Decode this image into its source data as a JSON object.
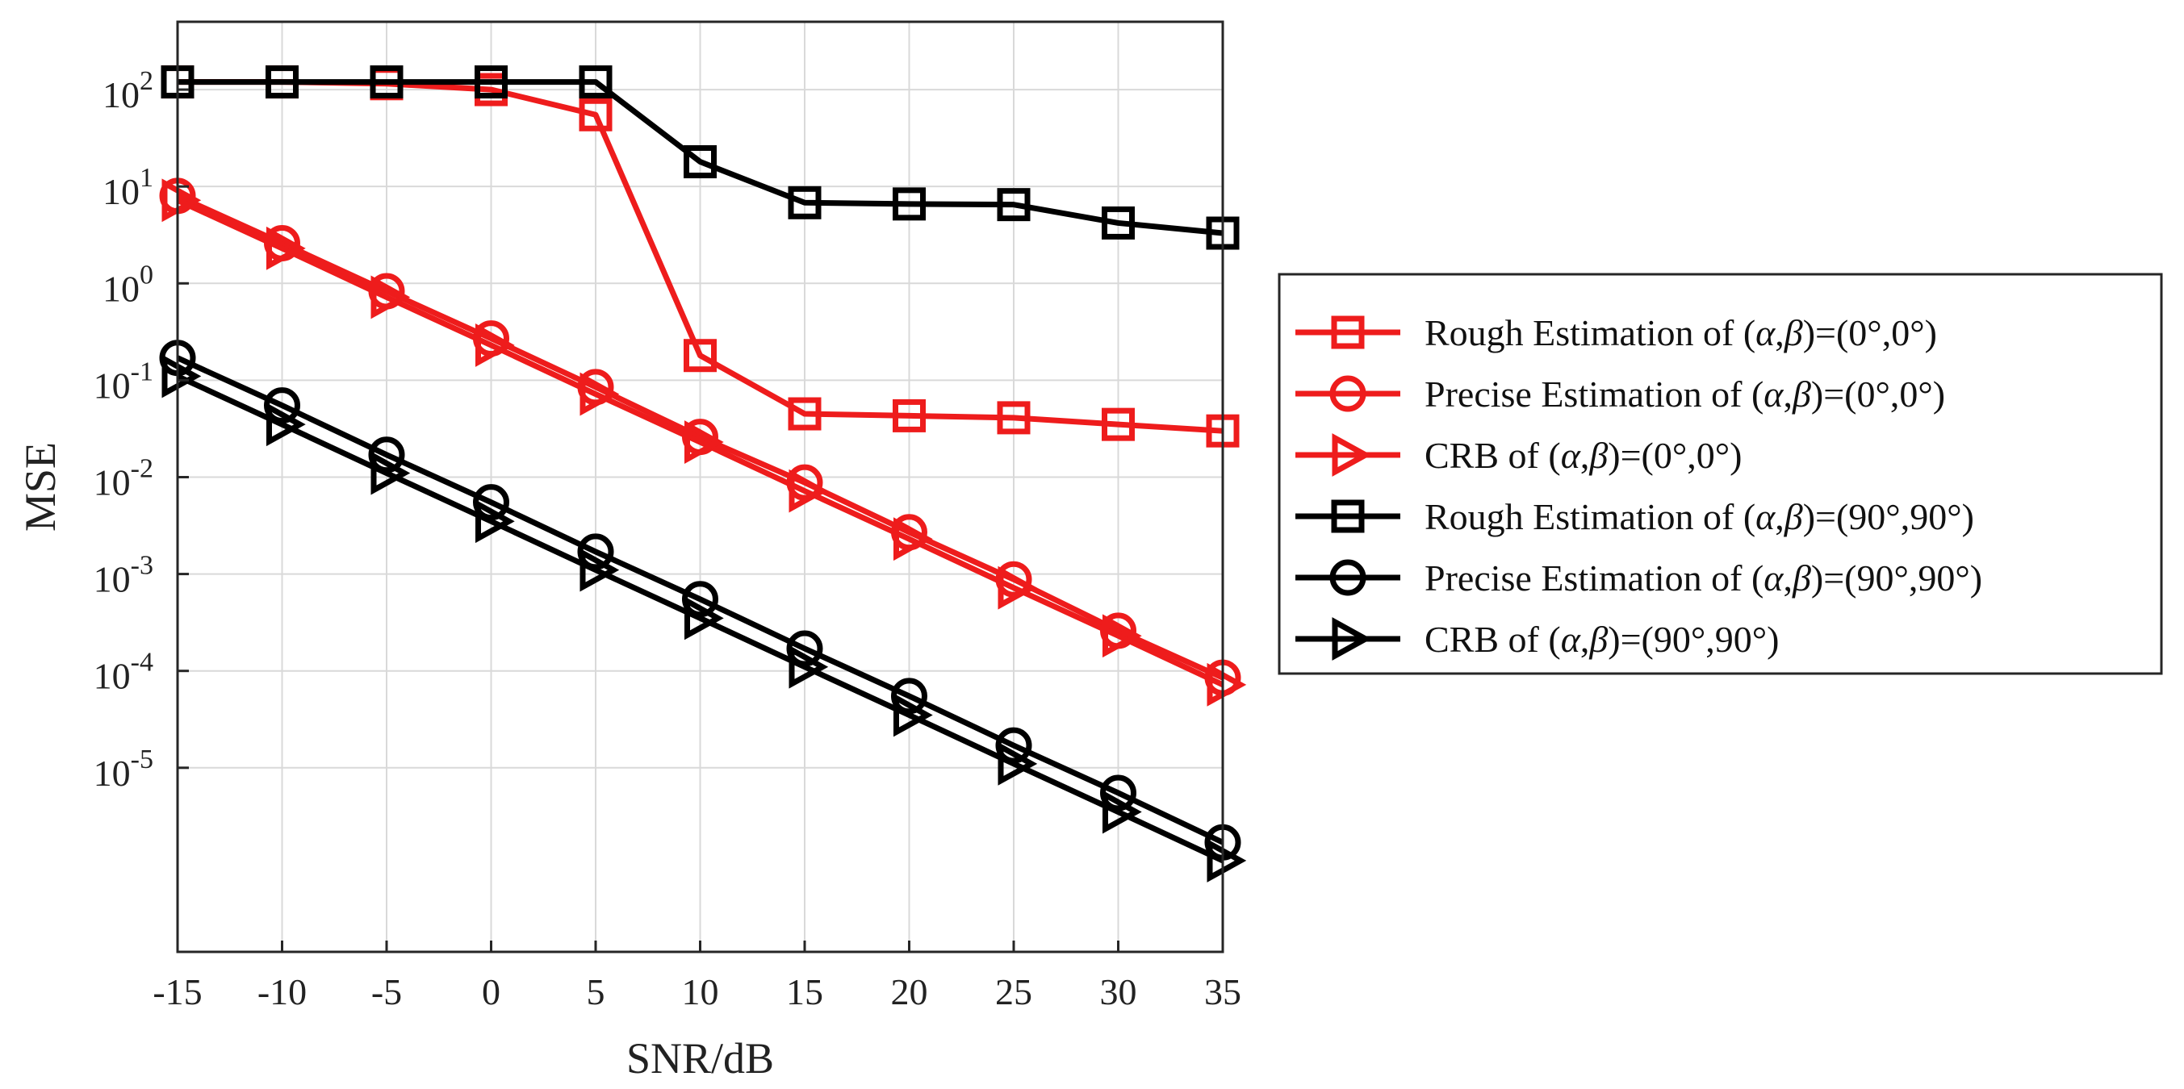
{
  "chart_data": {
    "type": "line",
    "title": "",
    "xlabel": "SNR/dB",
    "ylabel": "MSE",
    "xlim": [
      -15,
      35
    ],
    "ylim_log10": [
      -6.9,
      2.7
    ],
    "yscale": "log",
    "grid": true,
    "legend_position": "outside-right",
    "x": [
      -15,
      -10,
      -5,
      0,
      5,
      10,
      15,
      20,
      25,
      30,
      35
    ],
    "x_tick_labels": [
      "-15",
      "-10",
      "-5",
      "0",
      "5",
      "10",
      "15",
      "20",
      "25",
      "30",
      "35"
    ],
    "y_ticks": [
      {
        "base": "10",
        "exp": "2",
        "value": 100
      },
      {
        "base": "10",
        "exp": "1",
        "value": 10
      },
      {
        "base": "10",
        "exp": "0",
        "value": 1
      },
      {
        "base": "10",
        "exp": "-1",
        "value": 0.1
      },
      {
        "base": "10",
        "exp": "-2",
        "value": 0.01
      },
      {
        "base": "10",
        "exp": "-3",
        "value": 0.001
      },
      {
        "base": "10",
        "exp": "-4",
        "value": 0.0001
      },
      {
        "base": "10",
        "exp": "-5",
        "value": 1e-05
      }
    ],
    "series": [
      {
        "name": "Rough Estimation of  (α,β)=(0°,0°)",
        "legend": {
          "prefix": "Rough Estimation of  (",
          "a": "α",
          "sep": ",",
          "b": "β",
          "suffix": ")=(0°,0°)"
        },
        "color": "#ee1c1c",
        "marker": "square",
        "values": [
          120,
          120,
          115,
          100,
          55,
          0.18,
          0.045,
          0.043,
          0.041,
          0.035,
          0.03
        ]
      },
      {
        "name": "Precise Estimation of  (α,β)=(0°,0°)",
        "legend": {
          "prefix": "Precise Estimation of  (",
          "a": "α",
          "sep": ",",
          "b": "β",
          "suffix": ")=(0°,0°)"
        },
        "color": "#ee1c1c",
        "marker": "circle",
        "values": [
          8,
          2.6,
          0.83,
          0.27,
          0.085,
          0.026,
          0.0088,
          0.0027,
          0.00088,
          0.00026,
          8.5e-05
        ]
      },
      {
        "name": "CRB of (α,β)=(0°,0°)",
        "legend": {
          "prefix": "CRB of (",
          "a": "α",
          "sep": ",",
          "b": "β",
          "suffix": ")=(0°,0°)"
        },
        "color": "#ee1c1c",
        "marker": "triangle-right",
        "values": [
          7.2,
          2.3,
          0.72,
          0.23,
          0.072,
          0.023,
          0.0072,
          0.0023,
          0.00072,
          0.00023,
          7.2e-05
        ]
      },
      {
        "name": "Rough Estimation of (α,β)=(90°,90°)",
        "legend": {
          "prefix": "Rough Estimation of (",
          "a": "α",
          "sep": ",",
          "b": "β",
          "suffix": ")=(90°,90°)"
        },
        "color": "#000000",
        "marker": "square",
        "values": [
          120,
          120,
          120,
          120,
          120,
          18,
          6.8,
          6.6,
          6.5,
          4.2,
          3.3
        ]
      },
      {
        "name": "Precise Estimation of (α,β)=(90°,90°)",
        "legend": {
          "prefix": "Precise Estimation of (",
          "a": "α",
          "sep": ",",
          "b": "β",
          "suffix": ")=(90°,90°)"
        },
        "color": "#000000",
        "marker": "circle",
        "values": [
          0.17,
          0.055,
          0.017,
          0.0055,
          0.0017,
          0.00055,
          0.00017,
          5.5e-05,
          1.7e-05,
          5.5e-06,
          1.7e-06
        ]
      },
      {
        "name": "CRB of (α,β)=(90°,90°)",
        "legend": {
          "prefix": "CRB of (",
          "a": "α",
          "sep": ",",
          "b": "β",
          "suffix": ")=(90°,90°)"
        },
        "color": "#000000",
        "marker": "triangle-right",
        "values": [
          0.11,
          0.035,
          0.011,
          0.0035,
          0.0011,
          0.00035,
          0.00011,
          3.5e-05,
          1.1e-05,
          3.5e-06,
          1.1e-06
        ]
      }
    ]
  }
}
